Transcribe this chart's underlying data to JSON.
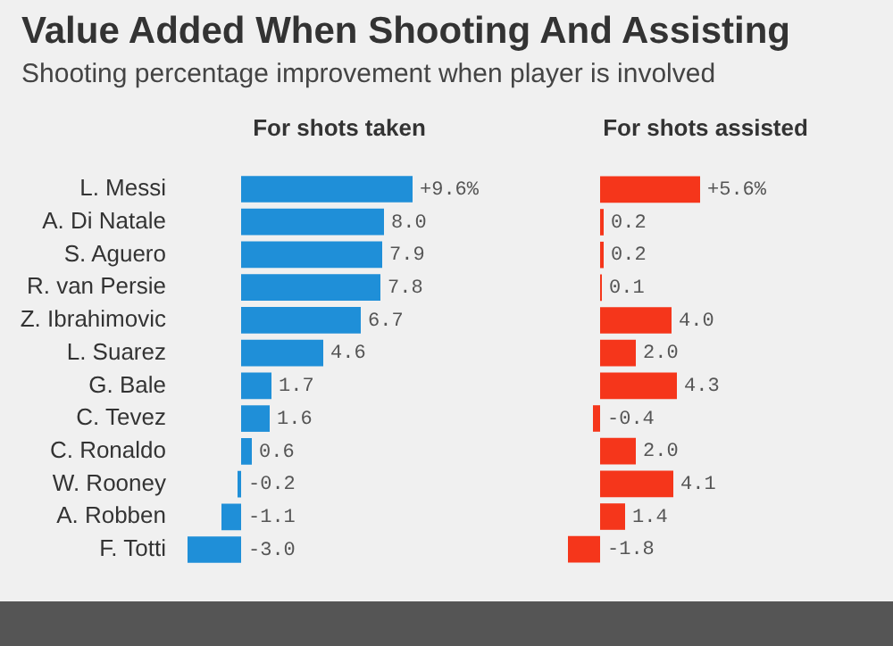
{
  "chart_data": [
    {
      "type": "bar",
      "orientation": "horizontal",
      "title": "Value Added When Shooting And Assisting",
      "subtitle": "Shooting percentage improvement when player is involved",
      "annotations": [
        "For shots taken"
      ],
      "categories": [
        "L. Messi",
        "A. Di Natale",
        "S. Aguero",
        "R. van Persie",
        "Z. Ibrahimovic",
        "L. Suarez",
        "G. Bale",
        "C. Tevez",
        "C. Ronaldo",
        "W. Rooney",
        "A. Robben",
        "F. Totti"
      ],
      "values": [
        9.6,
        8.0,
        7.9,
        7.8,
        6.7,
        4.6,
        1.7,
        1.6,
        0.6,
        -0.2,
        -1.1,
        -3.0
      ],
      "value_labels": [
        "+9.6%",
        "8.0",
        "7.9",
        "7.8",
        "6.7",
        "4.6",
        "1.7",
        "1.6",
        "0.6",
        "-0.2",
        "-1.1",
        "-3.0"
      ],
      "color": "#1f8fd8",
      "tick_labels": "y",
      "grid": false,
      "legend": false
    },
    {
      "type": "bar",
      "orientation": "horizontal",
      "annotations": [
        "For shots assisted"
      ],
      "categories": [
        null,
        null,
        null,
        null,
        null,
        null,
        null,
        null,
        null,
        null,
        null,
        null
      ],
      "values": [
        5.6,
        0.2,
        0.2,
        0.1,
        4.0,
        2.0,
        4.3,
        -0.4,
        2.0,
        4.1,
        1.4,
        -1.8
      ],
      "value_labels": [
        "+5.6%",
        "0.2",
        "0.2",
        "0.1",
        "4.0",
        "2.0",
        "4.3",
        "-0.4",
        "2.0",
        "4.1",
        "1.4",
        "-1.8"
      ],
      "color": "#f5361b",
      "tick_labels": false,
      "grid": false,
      "legend": false
    }
  ]
}
